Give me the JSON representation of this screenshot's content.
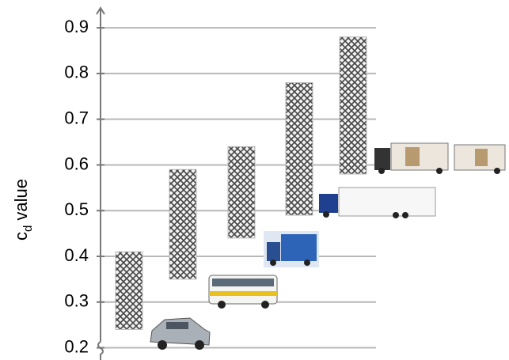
{
  "chart_data": {
    "type": "range_bar",
    "y_label": [
      "c",
      "d",
      " value"
    ],
    "categories": [
      null,
      null,
      null,
      null,
      null
    ],
    "low": [
      0.24,
      0.35,
      0.44,
      0.49,
      0.58
    ],
    "high": [
      0.41,
      0.59,
      0.64,
      0.78,
      0.88
    ],
    "ylim": [
      0.175,
      0.94
    ],
    "yticks": [
      0.2,
      0.3,
      0.4,
      0.5,
      0.6,
      0.7,
      0.8,
      0.9
    ],
    "grid": true
  }
}
